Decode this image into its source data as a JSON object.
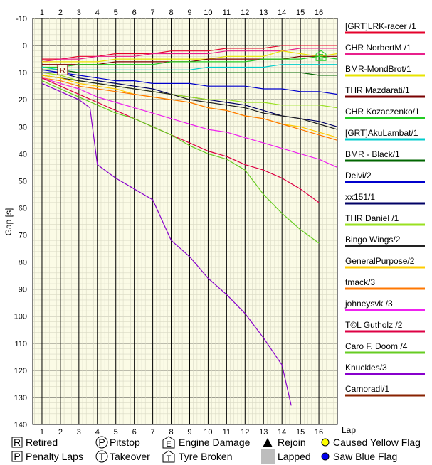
{
  "chart_data": {
    "type": "line",
    "title": "",
    "xlabel": "Lap",
    "ylabel": "Gap [s]",
    "x_ticks": [
      1,
      2,
      3,
      4,
      5,
      6,
      7,
      8,
      9,
      10,
      11,
      12,
      13,
      14,
      15,
      16
    ],
    "y_ticks": [
      -10,
      0,
      10,
      20,
      30,
      40,
      50,
      60,
      70,
      80,
      90,
      100,
      110,
      120,
      130,
      140
    ],
    "xlim": [
      0.5,
      17
    ],
    "ylim": [
      -10,
      140
    ],
    "y_inverted": true,
    "grid": true,
    "legend_position": "right",
    "series": [
      {
        "name": "[GRT]LRK-racer /1",
        "color": "#e4002b",
        "points": [
          [
            1,
            5
          ],
          [
            2,
            5
          ],
          [
            3,
            4
          ],
          [
            4,
            4
          ],
          [
            5,
            3
          ],
          [
            6,
            3
          ],
          [
            7,
            3
          ],
          [
            8,
            2
          ],
          [
            9,
            2
          ],
          [
            10,
            2
          ],
          [
            11,
            1
          ],
          [
            12,
            1
          ],
          [
            13,
            1
          ],
          [
            14,
            0
          ],
          [
            15,
            0
          ],
          [
            16,
            0
          ],
          [
            17,
            0
          ]
        ]
      },
      {
        "name": "CHR NorbertM /1",
        "color": "#e8208c",
        "points": [
          [
            1,
            6
          ],
          [
            2,
            5
          ],
          [
            3,
            5
          ],
          [
            4,
            4
          ],
          [
            5,
            4
          ],
          [
            6,
            4
          ],
          [
            7,
            3
          ],
          [
            8,
            3
          ],
          [
            9,
            3
          ],
          [
            10,
            3
          ],
          [
            11,
            2
          ],
          [
            12,
            2
          ],
          [
            13,
            2
          ],
          [
            14,
            2
          ],
          [
            15,
            1
          ],
          [
            16,
            1
          ],
          [
            17,
            1
          ]
        ]
      },
      {
        "name": "BMR-MondBrot/1",
        "color": "#e8e400",
        "points": [
          [
            1,
            6
          ],
          [
            2,
            6
          ],
          [
            3,
            6
          ],
          [
            4,
            6
          ],
          [
            5,
            5
          ],
          [
            6,
            5
          ],
          [
            7,
            5
          ],
          [
            8,
            5
          ],
          [
            9,
            5
          ],
          [
            10,
            5
          ],
          [
            11,
            4
          ],
          [
            12,
            4
          ],
          [
            13,
            4
          ],
          [
            14,
            2
          ],
          [
            15,
            3
          ],
          [
            16,
            4
          ],
          [
            17,
            3
          ]
        ]
      },
      {
        "name": "THR Mazdarati/1",
        "color": "#7a0000",
        "points": [
          [
            1,
            7
          ],
          [
            2,
            7
          ],
          [
            3,
            7
          ],
          [
            4,
            7
          ],
          [
            5,
            6
          ],
          [
            6,
            6
          ],
          [
            7,
            6
          ],
          [
            8,
            6
          ],
          [
            9,
            6
          ],
          [
            10,
            5
          ],
          [
            11,
            5
          ],
          [
            12,
            5
          ],
          [
            13,
            5
          ],
          [
            14,
            5
          ],
          [
            15,
            4
          ],
          [
            16,
            4
          ],
          [
            17,
            4
          ]
        ]
      },
      {
        "name": "CHR Kozaczenko/1",
        "color": "#22cc22",
        "points": [
          [
            1,
            8
          ],
          [
            2,
            8
          ],
          [
            3,
            7
          ],
          [
            4,
            7
          ],
          [
            5,
            7
          ],
          [
            6,
            7
          ],
          [
            7,
            7
          ],
          [
            8,
            6
          ],
          [
            9,
            6
          ],
          [
            10,
            6
          ],
          [
            11,
            6
          ],
          [
            12,
            6
          ],
          [
            13,
            5
          ],
          [
            14,
            5
          ],
          [
            15,
            5
          ],
          [
            16,
            4
          ],
          [
            17,
            5
          ]
        ]
      },
      {
        "name": "[GRT]AkuLambat/1",
        "color": "#00cccc",
        "points": [
          [
            1,
            8
          ],
          [
            2,
            9
          ],
          [
            3,
            9
          ],
          [
            4,
            9
          ],
          [
            5,
            9
          ],
          [
            6,
            9
          ],
          [
            7,
            9
          ],
          [
            8,
            9
          ],
          [
            9,
            9
          ],
          [
            10,
            8
          ],
          [
            11,
            8
          ],
          [
            12,
            8
          ],
          [
            13,
            8
          ],
          [
            14,
            7
          ],
          [
            15,
            7
          ],
          [
            16,
            7
          ],
          [
            17,
            7
          ]
        ]
      },
      {
        "name": "BMR - Black/1",
        "color": "#006600",
        "points": [
          [
            1,
            9
          ],
          [
            2,
            9
          ],
          [
            3,
            10
          ],
          [
            4,
            10
          ],
          [
            5,
            10
          ],
          [
            6,
            10
          ],
          [
            7,
            10
          ],
          [
            8,
            10
          ],
          [
            9,
            10
          ],
          [
            10,
            10
          ],
          [
            11,
            10
          ],
          [
            12,
            10
          ],
          [
            13,
            10
          ],
          [
            14,
            10
          ],
          [
            15,
            10
          ],
          [
            16,
            11
          ],
          [
            17,
            11
          ]
        ]
      },
      {
        "name": "Deivi/2",
        "color": "#0000cc",
        "points": [
          [
            1,
            9
          ],
          [
            2,
            10
          ],
          [
            3,
            11
          ],
          [
            4,
            12
          ],
          [
            5,
            13
          ],
          [
            6,
            13
          ],
          [
            7,
            14
          ],
          [
            8,
            14
          ],
          [
            9,
            14
          ],
          [
            10,
            15
          ],
          [
            11,
            15
          ],
          [
            12,
            15
          ],
          [
            13,
            16
          ],
          [
            14,
            16
          ],
          [
            15,
            17
          ],
          [
            16,
            17
          ],
          [
            17,
            18
          ]
        ]
      },
      {
        "name": "xx151/1",
        "color": "#000066",
        "points": [
          [
            1,
            10
          ],
          [
            2,
            10
          ],
          [
            3,
            12
          ],
          [
            4,
            13
          ],
          [
            5,
            14
          ],
          [
            6,
            15
          ],
          [
            7,
            16
          ],
          [
            8,
            18
          ],
          [
            9,
            19
          ],
          [
            10,
            20
          ],
          [
            11,
            21
          ],
          [
            12,
            22
          ],
          [
            13,
            24
          ],
          [
            14,
            26
          ],
          [
            15,
            27
          ],
          [
            16,
            28
          ],
          [
            17,
            30
          ]
        ]
      },
      {
        "name": "THR Daniel /1",
        "color": "#99e020",
        "points": [
          [
            1,
            10
          ],
          [
            2,
            11
          ],
          [
            3,
            13
          ],
          [
            4,
            14
          ],
          [
            5,
            15
          ],
          [
            6,
            16
          ],
          [
            7,
            17
          ],
          [
            8,
            18
          ],
          [
            9,
            19
          ],
          [
            10,
            20
          ],
          [
            11,
            20
          ],
          [
            12,
            21
          ],
          [
            13,
            21
          ],
          [
            14,
            22
          ],
          [
            15,
            22
          ],
          [
            16,
            22
          ],
          [
            17,
            23
          ]
        ]
      },
      {
        "name": "Bingo Wings/2",
        "color": "#222222",
        "points": [
          [
            1,
            11
          ],
          [
            2,
            12
          ],
          [
            3,
            13
          ],
          [
            4,
            14
          ],
          [
            5,
            15
          ],
          [
            6,
            16
          ],
          [
            7,
            17
          ],
          [
            8,
            18
          ],
          [
            9,
            20
          ],
          [
            10,
            21
          ],
          [
            11,
            22
          ],
          [
            12,
            23
          ],
          [
            13,
            25
          ],
          [
            14,
            26
          ],
          [
            15,
            27
          ],
          [
            16,
            29
          ],
          [
            17,
            31
          ]
        ]
      },
      {
        "name": "GeneralPurpose/2",
        "color": "#ffcc00",
        "points": [
          [
            1,
            11
          ],
          [
            2,
            12
          ],
          [
            3,
            14
          ],
          [
            4,
            15
          ],
          [
            5,
            16
          ],
          [
            6,
            18
          ],
          [
            7,
            19
          ],
          [
            8,
            20
          ],
          [
            9,
            21
          ],
          [
            10,
            23
          ],
          [
            11,
            24
          ],
          [
            12,
            26
          ],
          [
            13,
            27
          ],
          [
            14,
            29
          ],
          [
            15,
            30
          ],
          [
            16,
            32
          ],
          [
            17,
            34
          ]
        ]
      },
      {
        "name": "tmack/3",
        "color": "#ff7700",
        "points": [
          [
            1,
            12
          ],
          [
            2,
            13
          ],
          [
            3,
            15
          ],
          [
            4,
            16
          ],
          [
            5,
            17
          ],
          [
            6,
            18
          ],
          [
            7,
            19
          ],
          [
            8,
            20
          ],
          [
            9,
            21
          ],
          [
            10,
            23
          ],
          [
            11,
            24
          ],
          [
            12,
            26
          ],
          [
            13,
            27
          ],
          [
            14,
            29
          ],
          [
            15,
            31
          ],
          [
            16,
            33
          ],
          [
            17,
            35
          ]
        ]
      },
      {
        "name": "johneysvk /3",
        "color": "#ee22ee",
        "points": [
          [
            1,
            12
          ],
          [
            2,
            14
          ],
          [
            3,
            16
          ],
          [
            4,
            19
          ],
          [
            5,
            21
          ],
          [
            6,
            23
          ],
          [
            7,
            25
          ],
          [
            8,
            27
          ],
          [
            9,
            29
          ],
          [
            10,
            31
          ],
          [
            11,
            32
          ],
          [
            12,
            34
          ],
          [
            13,
            36
          ],
          [
            14,
            38
          ],
          [
            15,
            40
          ],
          [
            16,
            42
          ],
          [
            17,
            45
          ]
        ]
      },
      {
        "name": "T©L Gutholz /2",
        "color": "#dd0044",
        "points": [
          [
            1,
            12
          ],
          [
            2,
            15
          ],
          [
            3,
            18
          ],
          [
            4,
            21
          ],
          [
            5,
            24
          ],
          [
            6,
            27
          ],
          [
            7,
            30
          ],
          [
            8,
            33
          ],
          [
            9,
            36
          ],
          [
            10,
            39
          ],
          [
            11,
            41
          ],
          [
            12,
            44
          ],
          [
            13,
            46
          ],
          [
            14,
            49
          ],
          [
            15,
            53
          ],
          [
            16,
            58
          ]
        ]
      },
      {
        "name": "Caro F. Doom /4",
        "color": "#66cc22",
        "points": [
          [
            1,
            13
          ],
          [
            2,
            16
          ],
          [
            3,
            19
          ],
          [
            4,
            22
          ],
          [
            5,
            25
          ],
          [
            6,
            27
          ],
          [
            7,
            30
          ],
          [
            8,
            33
          ],
          [
            9,
            37
          ],
          [
            10,
            40
          ],
          [
            11,
            42
          ],
          [
            12,
            46
          ],
          [
            13,
            55
          ],
          [
            14,
            62
          ],
          [
            15,
            68
          ],
          [
            16,
            73
          ]
        ]
      },
      {
        "name": "Knuckles/3",
        "color": "#8800cc",
        "points": [
          [
            1,
            14
          ],
          [
            2,
            17
          ],
          [
            3,
            20
          ],
          [
            3.6,
            23
          ],
          [
            4,
            44
          ],
          [
            5,
            49
          ],
          [
            6,
            53
          ],
          [
            7,
            57
          ],
          [
            8,
            72
          ],
          [
            9,
            78
          ],
          [
            10,
            86
          ],
          [
            11,
            92
          ],
          [
            12,
            99
          ],
          [
            13,
            108
          ],
          [
            14,
            118
          ],
          [
            14.5,
            133
          ]
        ]
      },
      {
        "name": "Camoradi/1",
        "color": "#882200",
        "points": []
      }
    ],
    "markers": [
      {
        "symbol": "R",
        "lap": 2,
        "gap": 9
      },
      {
        "symbol": "E",
        "lap": 16,
        "gap": 4
      }
    ]
  },
  "key": {
    "retired": {
      "symbol": "R",
      "label": "Retired"
    },
    "penalty": {
      "symbol": "P",
      "label": "Penalty Laps"
    },
    "pitstop": {
      "symbol": "P",
      "label": "Pitstop"
    },
    "takeover": {
      "symbol": "T",
      "label": "Takeover"
    },
    "engine": {
      "symbol": "E",
      "label": "Engine Damage"
    },
    "tyre": {
      "symbol": "T",
      "label": "Tyre Broken"
    },
    "rejoin": {
      "label": "Rejoin"
    },
    "lapped": {
      "label": "Lapped"
    },
    "yellow": {
      "label": "Caused Yellow Flag",
      "color": "#ffff00"
    },
    "blue": {
      "label": "Saw Blue Flag",
      "color": "#0000ee"
    }
  },
  "colors": {
    "plot_bg": "#fbfbe6",
    "grid": "#000000"
  }
}
